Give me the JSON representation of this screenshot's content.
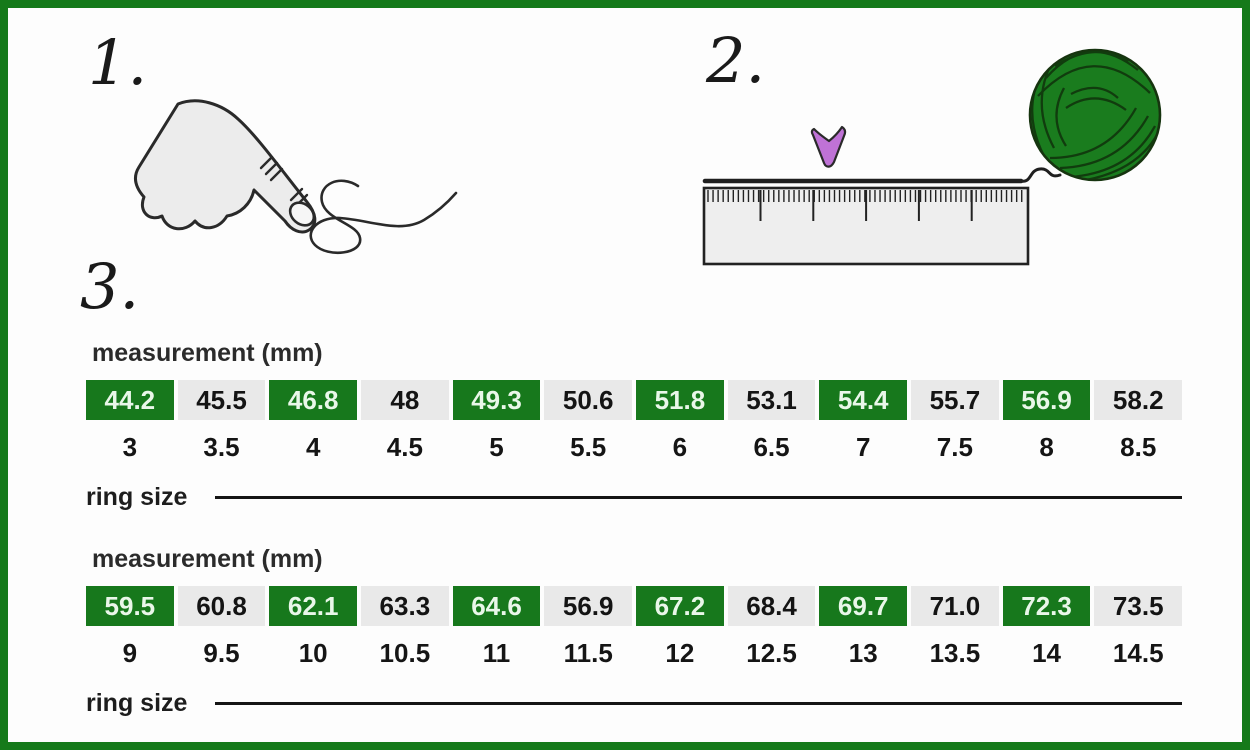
{
  "frame": {
    "background": "#fdfdfd",
    "border_color": "#157a1a"
  },
  "steps": {
    "one": "1.",
    "two": "2.",
    "three": "3."
  },
  "illustrations": {
    "hand_fill": "#ececec",
    "outline_color": "#2a2a2a",
    "ruler_fill": "#eeeeee",
    "arrow_color": "#bf72d6",
    "yarn_color": "#1a7c1e",
    "yarn_line_color": "#113c0e"
  },
  "size_chart": {
    "highlight_color": "#17781c",
    "cell_bg": "#e9e9e9",
    "tables": [
      {
        "measurement_label": "measurement (mm)",
        "ring_size_label": "ring size",
        "measurements": [
          "44.2",
          "45.5",
          "46.8",
          "48",
          "49.3",
          "50.6",
          "51.8",
          "53.1",
          "54.4",
          "55.7",
          "56.9",
          "58.2"
        ],
        "ring_sizes": [
          "3",
          "3.5",
          "4",
          "4.5",
          "5",
          "5.5",
          "6",
          "6.5",
          "7",
          "7.5",
          "8",
          "8.5"
        ]
      },
      {
        "measurement_label": "measurement (mm)",
        "ring_size_label": "ring size",
        "measurements": [
          "59.5",
          "60.8",
          "62.1",
          "63.3",
          "64.6",
          "56.9",
          "67.2",
          "68.4",
          "69.7",
          "71.0",
          "72.3",
          "73.5"
        ],
        "ring_sizes": [
          "9",
          "9.5",
          "10",
          "10.5",
          "11",
          "11.5",
          "12",
          "12.5",
          "13",
          "13.5",
          "14",
          "14.5"
        ]
      }
    ]
  }
}
